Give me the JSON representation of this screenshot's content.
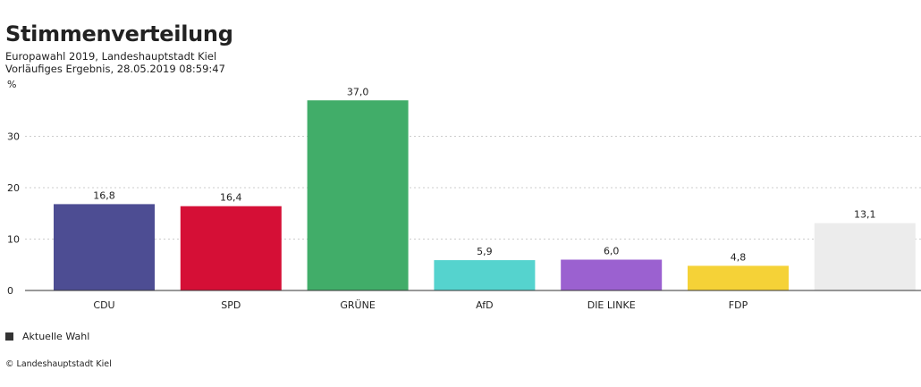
{
  "header": {
    "title": "Stimmenverteilung",
    "subtitle_line1": "Europawahl 2019, Landeshauptstadt Kiel",
    "subtitle_line2": "Vorläufiges Ergebnis, 28.05.2019 08:59:47"
  },
  "legend": {
    "label": "Aktuelle Wahl",
    "color": "#333333"
  },
  "credit": "© Landeshauptstadt Kiel",
  "chart_data": {
    "type": "bar",
    "title": "Stimmenverteilung",
    "ylabel": "%",
    "xlabel": "",
    "ylim": [
      0,
      40
    ],
    "yticks": [
      0,
      10,
      20,
      30
    ],
    "grid": true,
    "legend_position": "bottom-left",
    "categories": [
      "CDU",
      "SPD",
      "GRÜNE",
      "AfD",
      "DIE LINKE",
      "FDP",
      ""
    ],
    "values": [
      16.8,
      16.4,
      37.0,
      5.9,
      6.0,
      4.8,
      13.1
    ],
    "value_labels": [
      "16,8",
      "16,4",
      "37,0",
      "5,9",
      "6,0",
      "4,8",
      "13,1"
    ],
    "colors": [
      "#4d4d93",
      "#d50f36",
      "#41ad69",
      "#55d3ce",
      "#9b61d0",
      "#f5d237",
      "#ececec"
    ]
  }
}
